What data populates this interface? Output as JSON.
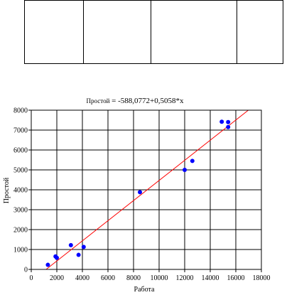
{
  "table": {
    "rows": 1,
    "cells": [
      "",
      "",
      "",
      ""
    ]
  },
  "chart_data": {
    "type": "scatter",
    "title_prefix": "Простой",
    "title_equation": " = -588,0772+0,5058*x",
    "xlabel": "Работа",
    "ylabel": "Простой",
    "xlim": [
      0,
      18000
    ],
    "ylim": [
      0,
      8000
    ],
    "xticks": [
      0,
      2000,
      4000,
      6000,
      8000,
      10000,
      12000,
      14000,
      16000,
      18000
    ],
    "yticks": [
      0,
      1000,
      2000,
      3000,
      4000,
      5000,
      6000,
      7000,
      8000
    ],
    "grid": true,
    "points": [
      {
        "x": 1300,
        "y": 230
      },
      {
        "x": 1900,
        "y": 650
      },
      {
        "x": 2000,
        "y": 580
      },
      {
        "x": 3100,
        "y": 1220
      },
      {
        "x": 3700,
        "y": 730
      },
      {
        "x": 4100,
        "y": 1130
      },
      {
        "x": 8500,
        "y": 3880
      },
      {
        "x": 12000,
        "y": 5000
      },
      {
        "x": 12600,
        "y": 5450
      },
      {
        "x": 14900,
        "y": 7420
      },
      {
        "x": 15400,
        "y": 7150
      },
      {
        "x": 15400,
        "y": 7400
      }
    ],
    "fit_line": {
      "intercept": -588.0772,
      "slope": 0.5058
    },
    "point_color": "#0000ff",
    "line_color": "#ff0000"
  }
}
